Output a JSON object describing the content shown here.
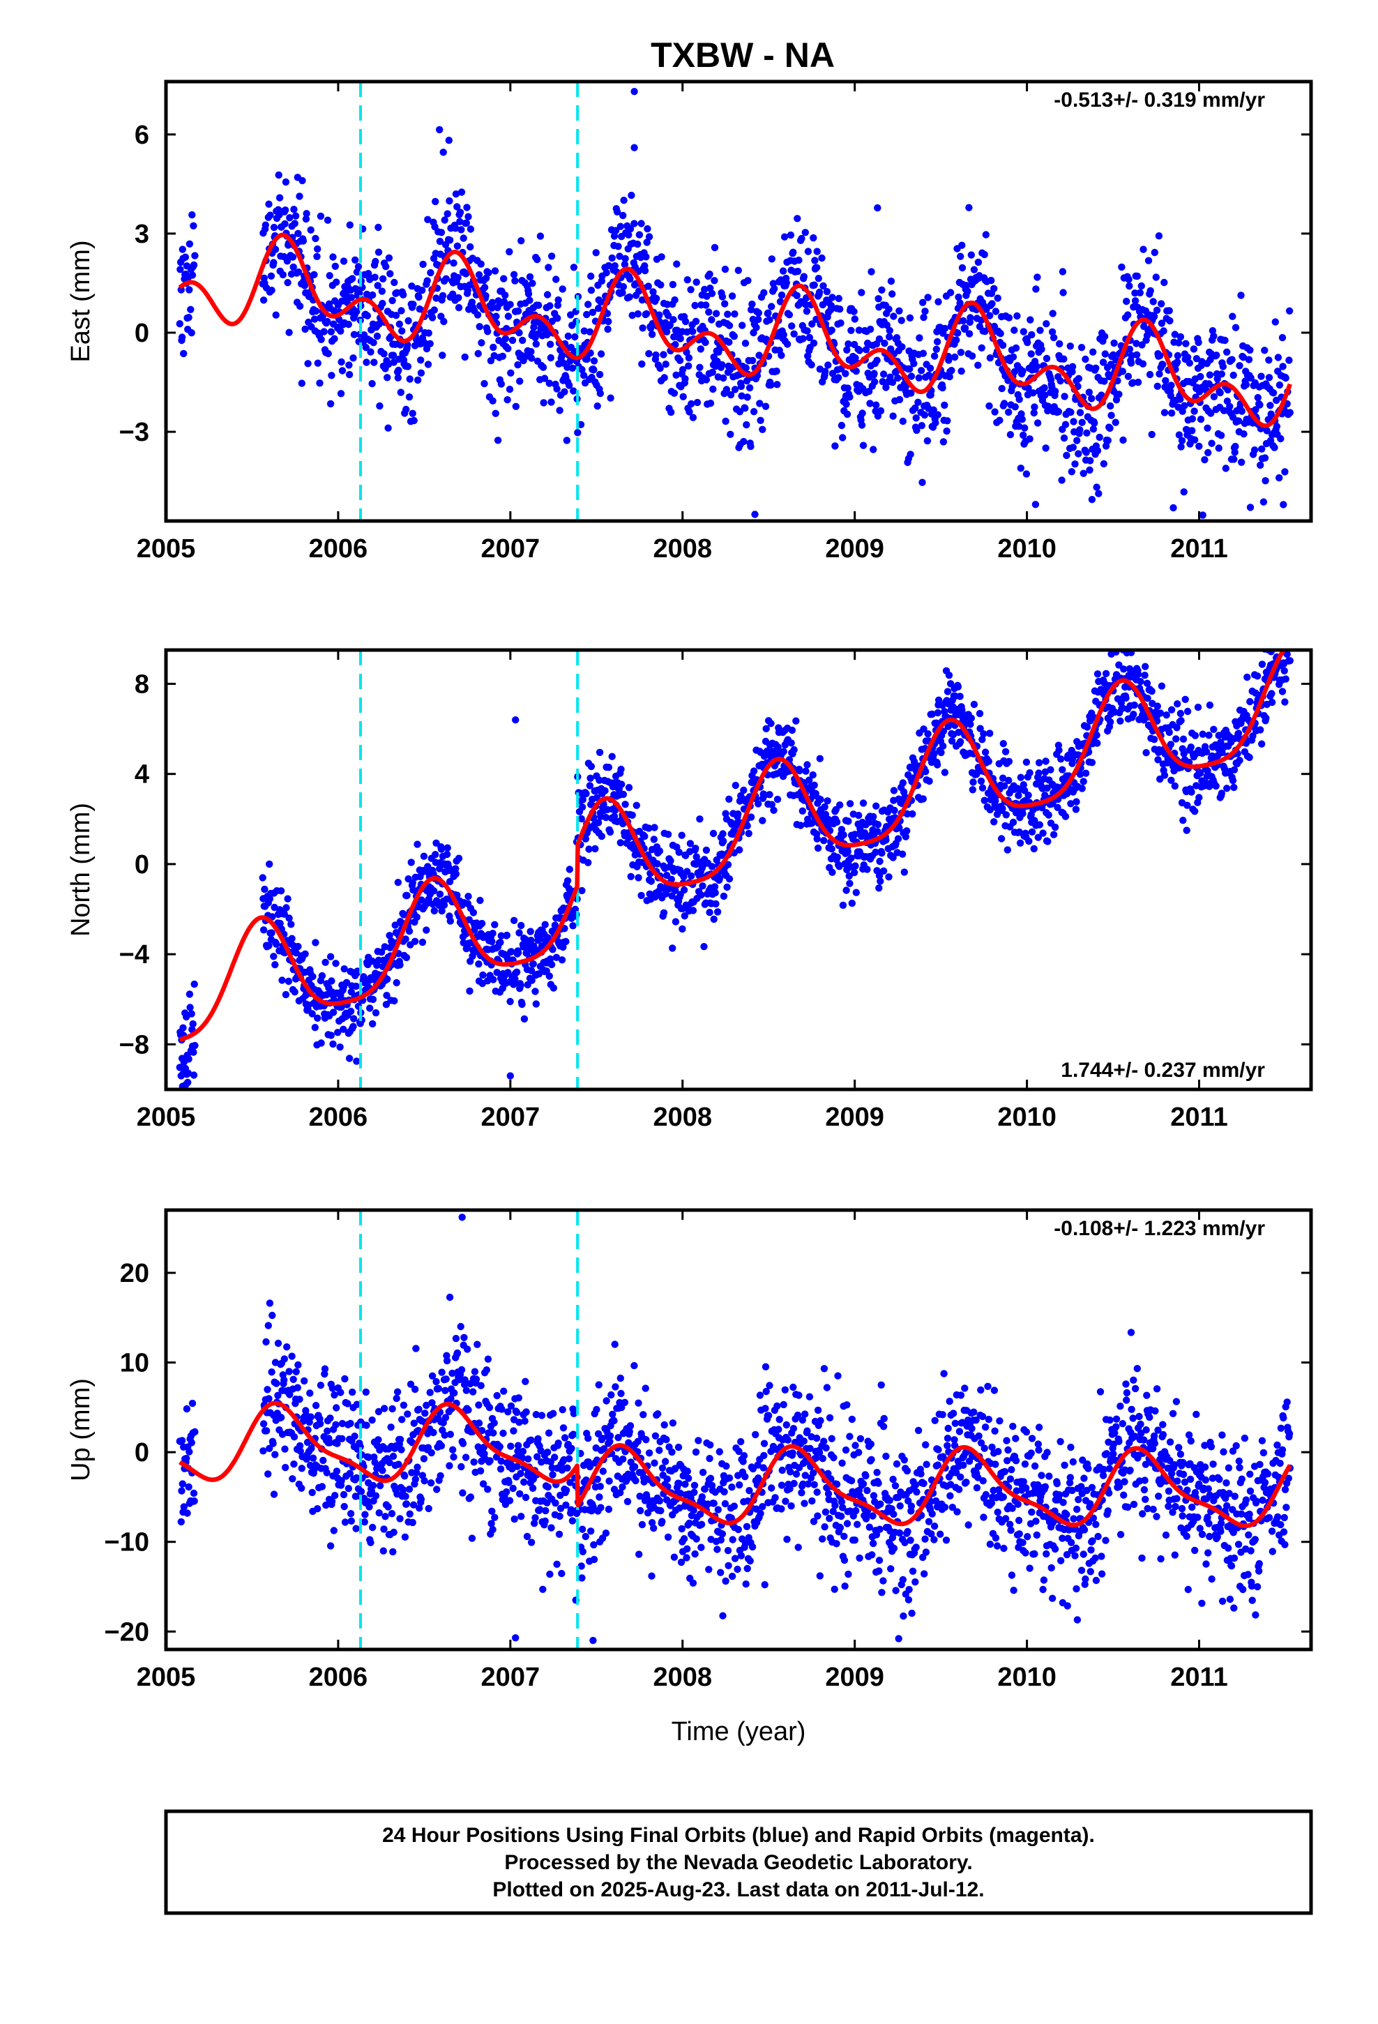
{
  "title": "TXBW - NA",
  "colors": {
    "points": "#0000ff",
    "model": "#ff0000",
    "events": "#00e5ee",
    "frame": "#000000"
  },
  "xlabel": "Time (year)",
  "footer": {
    "line1": "24 Hour Positions Using Final Orbits (blue) and Rapid Orbits (magenta).",
    "line2": "Processed by the Nevada Geodetic Laboratory.",
    "line3": "Plotted on 2025-Aug-23. Last data on 2011-Jul-12."
  },
  "chart_data": [
    {
      "type": "scatter",
      "component": "east",
      "ylabel": "East (mm)",
      "rate_text": "-0.513+/- 0.319 mm/yr",
      "xlim": [
        2005.0,
        2011.65
      ],
      "ylim": [
        -5.7,
        7.6
      ],
      "xticks": [
        2005,
        2006,
        2007,
        2008,
        2009,
        2010,
        2011
      ],
      "yticks": [
        -3,
        0,
        3,
        6
      ],
      "event_lines": [
        2006.13,
        2007.39
      ],
      "model": {
        "rate": -0.513,
        "offset": 1.6,
        "t0": 2005.08,
        "annual_amp": 0.9,
        "annual_peak": 2005.72,
        "semiannual_amp": 0.8,
        "semiannual_peak": 2005.67,
        "steps": [
          {
            "t": 2007.39,
            "dy": 0.0
          }
        ]
      },
      "scatter": {
        "noise": 1.15,
        "seed": 11,
        "outliers": [
          [
            2007.72,
            7.3
          ],
          [
            2007.72,
            5.6
          ],
          [
            2008.42,
            -5.5
          ],
          [
            2010.05,
            -5.2
          ],
          [
            2010.85,
            -5.3
          ]
        ]
      }
    },
    {
      "type": "scatter",
      "component": "north",
      "ylabel": "North (mm)",
      "rate_text": "1.744+/- 0.237 mm/yr",
      "xlim": [
        2005.0,
        2011.65
      ],
      "ylim": [
        -10.0,
        9.5
      ],
      "xticks": [
        2005,
        2006,
        2007,
        2008,
        2009,
        2010,
        2011
      ],
      "yticks": [
        -8,
        -4,
        0,
        4,
        8
      ],
      "event_lines": [
        2006.13,
        2007.39
      ],
      "model": {
        "rate": 1.744,
        "offset": -6.0,
        "t0": 2005.08,
        "annual_amp": 2.3,
        "annual_peak": 2005.55,
        "semiannual_amp": 0.5,
        "semiannual_peak": 2005.55,
        "steps": [
          {
            "t": 2006.13,
            "dy": 0.0
          },
          {
            "t": 2007.39,
            "dy": 1.8
          }
        ]
      },
      "scatter": {
        "noise": 0.95,
        "seed": 23,
        "outliers": [
          [
            2007.03,
            6.4
          ],
          [
            2005.6,
            0.0
          ],
          [
            2005.1,
            -9.3
          ],
          [
            2007.0,
            -9.4
          ]
        ]
      }
    },
    {
      "type": "scatter",
      "component": "up",
      "ylabel": "Up (mm)",
      "rate_text": "-0.108+/- 1.223 mm/yr",
      "xlim": [
        2005.0,
        2011.65
      ],
      "ylim": [
        -22.0,
        27.0
      ],
      "xticks": [
        2005,
        2006,
        2007,
        2008,
        2009,
        2010,
        2011
      ],
      "yticks": [
        -20,
        -10,
        0,
        10,
        20
      ],
      "event_lines": [
        2006.13,
        2007.39
      ],
      "model": {
        "rate": -0.108,
        "offset": 0.8,
        "t0": 2005.08,
        "annual_amp": 3.8,
        "annual_peak": 2005.68,
        "semiannual_amp": 1.2,
        "semiannual_peak": 2005.6,
        "steps": [
          {
            "t": 2007.39,
            "dy": -4.5
          }
        ]
      },
      "scatter": {
        "noise": 4.3,
        "seed": 37,
        "outliers": [
          [
            2006.72,
            26.2
          ],
          [
            2007.03,
            -20.7
          ],
          [
            2007.48,
            -21.0
          ],
          [
            2007.38,
            -16.5
          ],
          [
            2011.18,
            -16.4
          ]
        ]
      }
    }
  ]
}
